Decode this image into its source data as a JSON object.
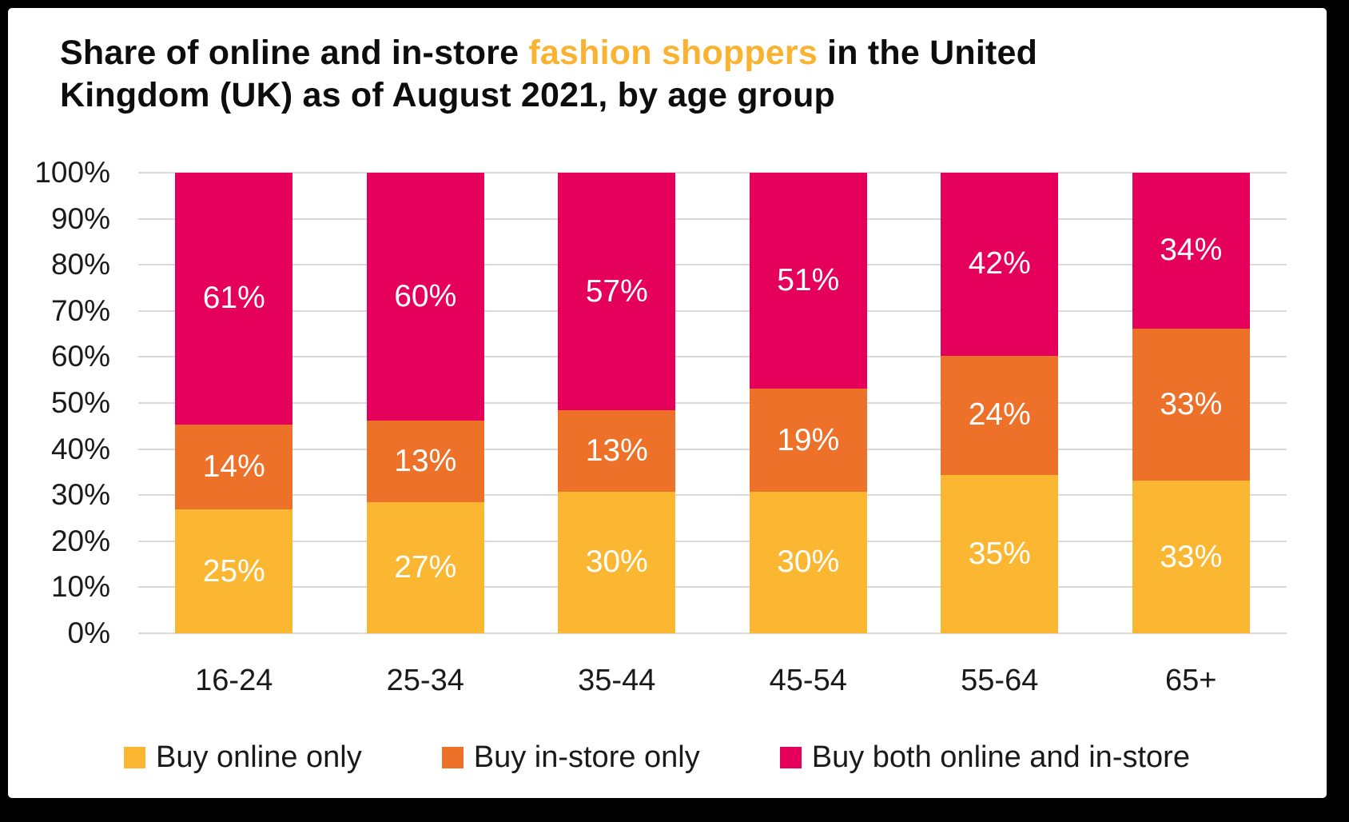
{
  "title": {
    "part1": "Share of online and in-store ",
    "highlight": "fashion shoppers",
    "part2": " in the United Kingdom (UK) as of August 2021, by age group"
  },
  "colors": {
    "frame": "#000000",
    "background": "#FFFFFF",
    "title_text": "#0D0D0D",
    "title_highlight": "#FAB331",
    "axis_text": "#1A1A1A",
    "grid": "#D9D9D9",
    "value_label": "#FFFFFF"
  },
  "chart_data": {
    "type": "bar",
    "stacked": true,
    "title": "Share of online and in-store fashion shoppers in the United Kingdom (UK) as of August 2021, by age group",
    "categories": [
      "16-24",
      "25-34",
      "35-44",
      "45-54",
      "55-64",
      "65+"
    ],
    "series": [
      {
        "name": "Buy online only",
        "color": "#FBB731",
        "values": [
          25,
          27,
          30,
          30,
          35,
          33
        ]
      },
      {
        "name": "Buy in-store only",
        "color": "#ED7128",
        "values": [
          14,
          13,
          13,
          19,
          24,
          33
        ]
      },
      {
        "name": "Buy both online and in-store",
        "color": "#E5005C",
        "values": [
          61,
          60,
          57,
          51,
          42,
          34
        ]
      }
    ],
    "value_suffix": "%",
    "yticks": [
      "100%",
      "90%",
      "80%",
      "70%",
      "60%",
      "50%",
      "40%",
      "30%",
      "20%",
      "10%",
      "0%"
    ],
    "ylim": [
      0,
      100
    ],
    "grid": true,
    "legend_position": "bottom"
  }
}
